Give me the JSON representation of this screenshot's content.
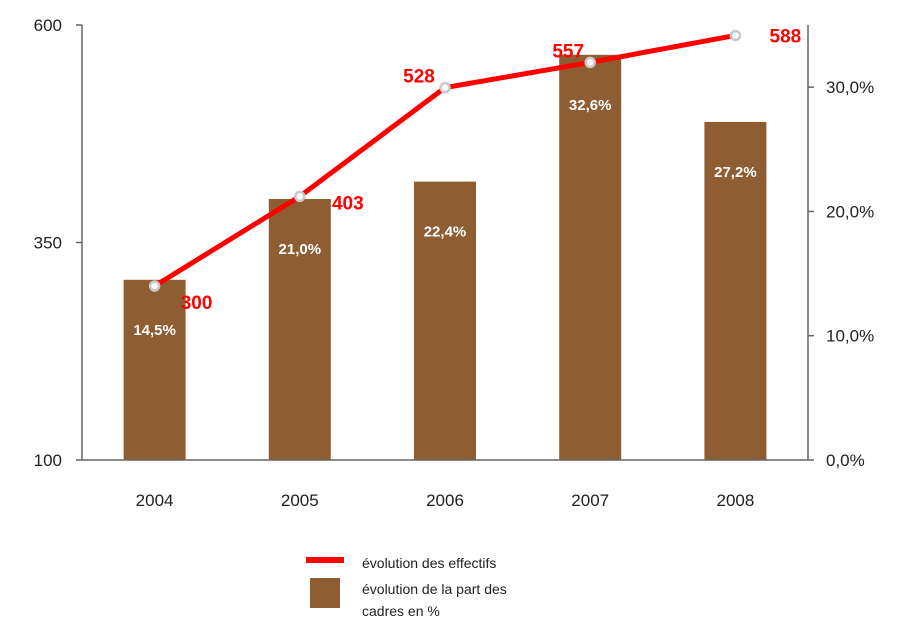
{
  "chart_data": {
    "type": "bar",
    "categories": [
      "2004",
      "2005",
      "2006",
      "2007",
      "2008"
    ],
    "series": [
      {
        "type": "bar",
        "axis": "right",
        "values": [
          14.5,
          21.0,
          22.4,
          32.6,
          27.2
        ],
        "labels": [
          "14,5%",
          "21,0%",
          "22,4%",
          "32,6%",
          "27,2%"
        ],
        "color": "#8f5d32"
      },
      {
        "type": "line",
        "axis": "left",
        "values": [
          300,
          403,
          528,
          557,
          588
        ],
        "labels": [
          "300",
          "403",
          "528",
          "557",
          "588"
        ],
        "color": "#ff0000",
        "marker_color": "#c8c8c8"
      }
    ],
    "y_left": {
      "ylim": [
        100,
        600
      ],
      "ticks": [
        "100",
        "350",
        "600"
      ]
    },
    "y_right": {
      "ylim": [
        0,
        35
      ],
      "ticks": [
        "0,0%",
        "10,0%",
        "20,0%",
        "30,0%"
      ]
    },
    "grid": false,
    "legend": {
      "position": "bottom",
      "line_label": "évolution des effectifs",
      "bar_label_lines": [
        "évolution de la part des",
        "cadres en %"
      ]
    }
  }
}
